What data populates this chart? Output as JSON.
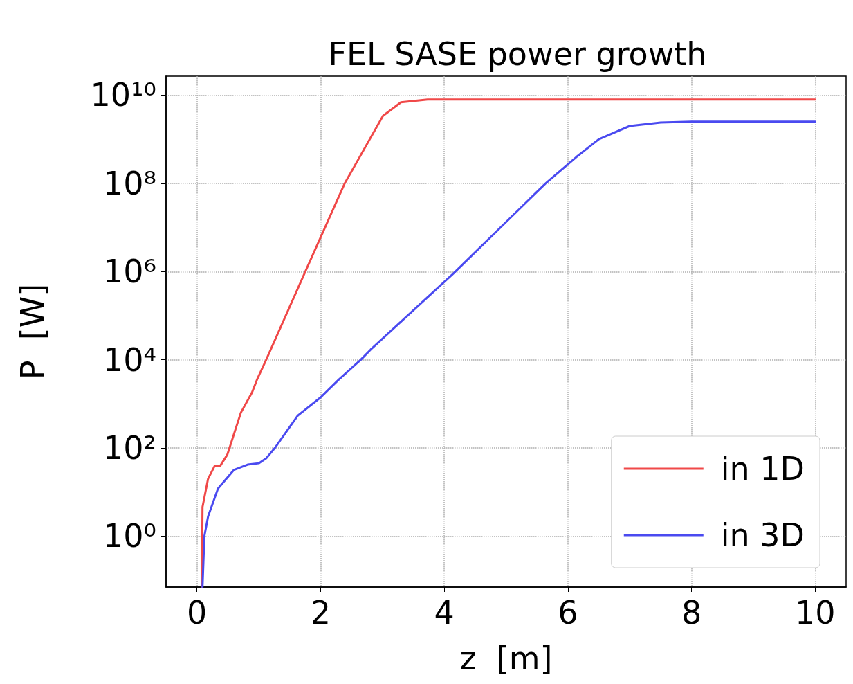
{
  "chart_data": {
    "type": "line",
    "title": "FEL SASE power growth",
    "xlabel": "z  [m]",
    "ylabel": "P  [W]",
    "xlim": [
      -0.5,
      10.5
    ],
    "xticks": [
      0,
      2,
      4,
      6,
      8,
      10
    ],
    "ylim": [
      0.07,
      27000000000.0
    ],
    "log": "y",
    "yticks": [
      {
        "value": 1,
        "label": "10⁰"
      },
      {
        "value": 100,
        "label": "10²"
      },
      {
        "value": 10000,
        "label": "10⁴"
      },
      {
        "value": 1000000,
        "label": "10⁶"
      },
      {
        "value": 100000000,
        "label": "10⁸"
      },
      {
        "value": 10000000000,
        "label": "10¹⁰"
      }
    ],
    "grid": true,
    "legend": "bottom right",
    "line_style": "solid",
    "marker": "none",
    "series": [
      {
        "name": "in 1D",
        "color": "#f04848",
        "x": [
          0.08,
          0.09,
          0.18,
          0.29,
          0.38,
          0.49,
          0.54,
          0.71,
          0.89,
          0.97,
          1.12,
          1.74,
          2.39,
          3.01,
          3.3,
          3.73,
          10
        ],
        "values": [
          0.07,
          4.6,
          20,
          40,
          40,
          70,
          115,
          630,
          1800,
          3500,
          10000,
          910000,
          100000000,
          3400000000,
          6900000000,
          8000000000,
          8000000000
        ]
      },
      {
        "name": "in 3D",
        "color": "#4a4af0",
        "x": [
          0.09,
          0.12,
          0.18,
          0.34,
          0.6,
          0.82,
          1.0,
          1.12,
          1.26,
          1.63,
          2.0,
          2.29,
          2.65,
          2.81,
          4.15,
          5.64,
          6.14,
          6.5,
          7,
          7.5,
          8,
          10
        ],
        "values": [
          0.07,
          1,
          2.8,
          12,
          32,
          42,
          45,
          58,
          100,
          540,
          1400,
          3500,
          10000,
          17000,
          910000,
          100000000,
          400000000,
          1000000000,
          2000000000,
          2400000000,
          2500000000,
          2500000000
        ]
      }
    ]
  }
}
